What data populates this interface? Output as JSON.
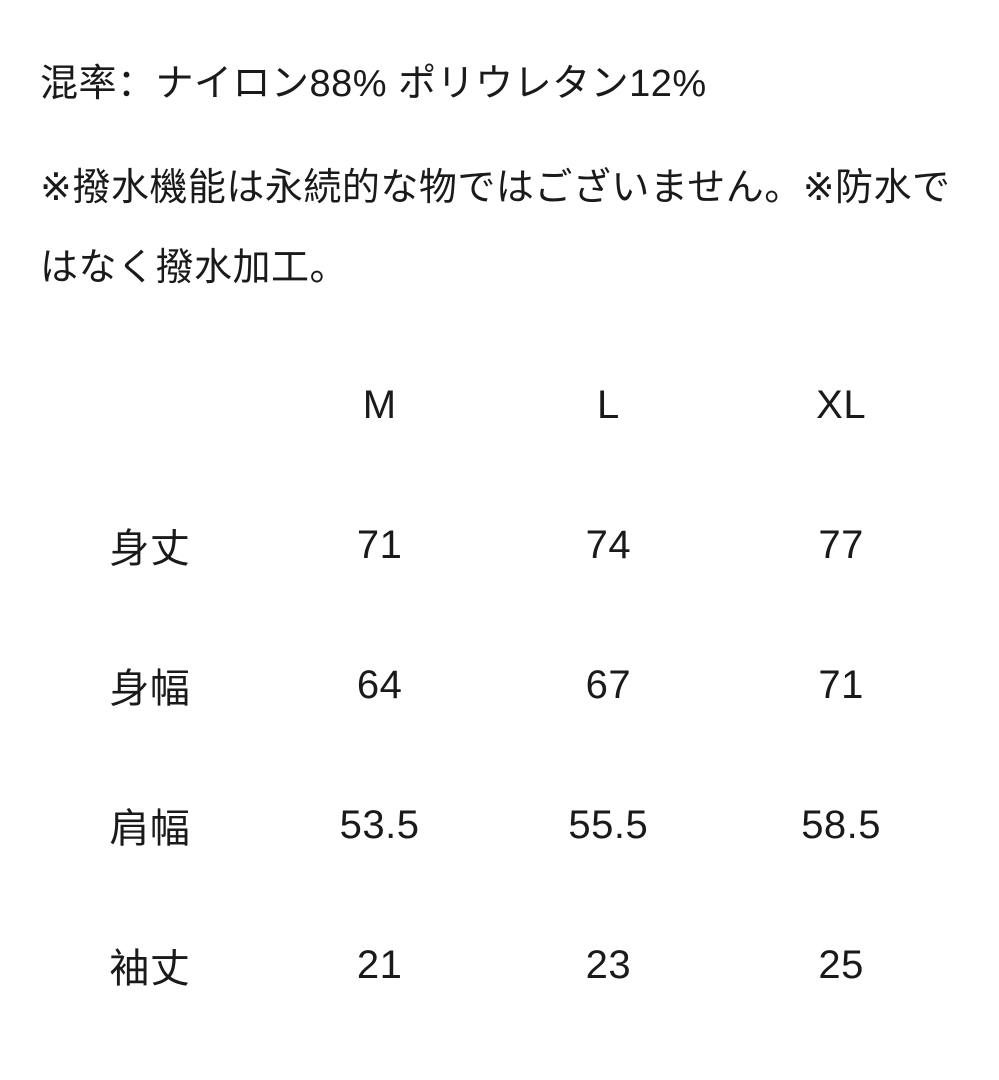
{
  "page": {
    "background_color": "#ffffff",
    "text_color": "#1a1a1a"
  },
  "description": {
    "composition_line": "混率：ナイロン88% ポリウレタン12%",
    "note_line": "※撥水機能は永続的な物ではございません。※防水ではなく撥水加工。"
  },
  "size_chart": {
    "type": "table",
    "columns": [
      "",
      "M",
      "L",
      "XL"
    ],
    "rows": [
      {
        "label": "身丈",
        "values": [
          "71",
          "74",
          "77"
        ]
      },
      {
        "label": "身幅",
        "values": [
          "64",
          "67",
          "71"
        ]
      },
      {
        "label": "肩幅",
        "values": [
          "53.5",
          "55.5",
          "58.5"
        ]
      },
      {
        "label": "袖丈",
        "values": [
          "21",
          "23",
          "25"
        ]
      }
    ]
  }
}
